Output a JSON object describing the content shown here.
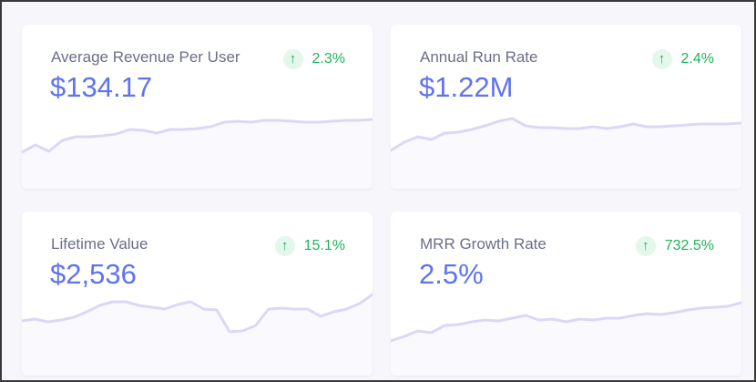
{
  "metrics": [
    {
      "title": "Average Revenue Per User",
      "value": "$134.17",
      "change": "2.3%",
      "trend_icon": "arrow-up-icon",
      "sparkline": [
        40,
        48,
        41,
        53,
        57,
        57,
        58,
        60,
        65,
        64,
        61,
        65,
        65,
        66,
        68,
        73,
        74,
        73,
        75,
        75,
        74,
        73,
        73,
        74,
        75,
        75,
        76
      ]
    },
    {
      "title": "Annual Run Rate",
      "value": "$1.22M",
      "change": "2.4%",
      "trend_icon": "arrow-up-icon",
      "sparkline": [
        42,
        51,
        57,
        54,
        61,
        62,
        65,
        69,
        74,
        77,
        69,
        67,
        67,
        66,
        66,
        68,
        66,
        68,
        71,
        68,
        68,
        69,
        70,
        71,
        71,
        71,
        72
      ]
    },
    {
      "title": "Lifetime Value",
      "value": "$2,536",
      "change": "15.1%",
      "trend_icon": "arrow-up-icon",
      "sparkline": [
        60,
        62,
        59,
        61,
        64,
        70,
        77,
        81,
        81,
        77,
        75,
        73,
        78,
        81,
        73,
        72,
        48,
        49,
        55,
        73,
        74,
        73,
        73,
        65,
        70,
        73,
        79,
        89
      ]
    },
    {
      "title": "MRR Growth Rate",
      "value": "2.5%",
      "change": "732.5%",
      "trend_icon": "arrow-up-icon",
      "sparkline": [
        38,
        43,
        49,
        47,
        55,
        56,
        59,
        61,
        60,
        63,
        66,
        61,
        62,
        59,
        62,
        61,
        63,
        63,
        66,
        68,
        67,
        69,
        72,
        74,
        75,
        76,
        80
      ]
    }
  ],
  "colors": {
    "background": "#f6f6fb",
    "card": "#ffffff",
    "title": "#6b6d8a",
    "value": "#5f73ee",
    "positive": "#1fb45a",
    "positive_badge": "#e3f7ea",
    "sparkline": "#dbd8f6"
  }
}
